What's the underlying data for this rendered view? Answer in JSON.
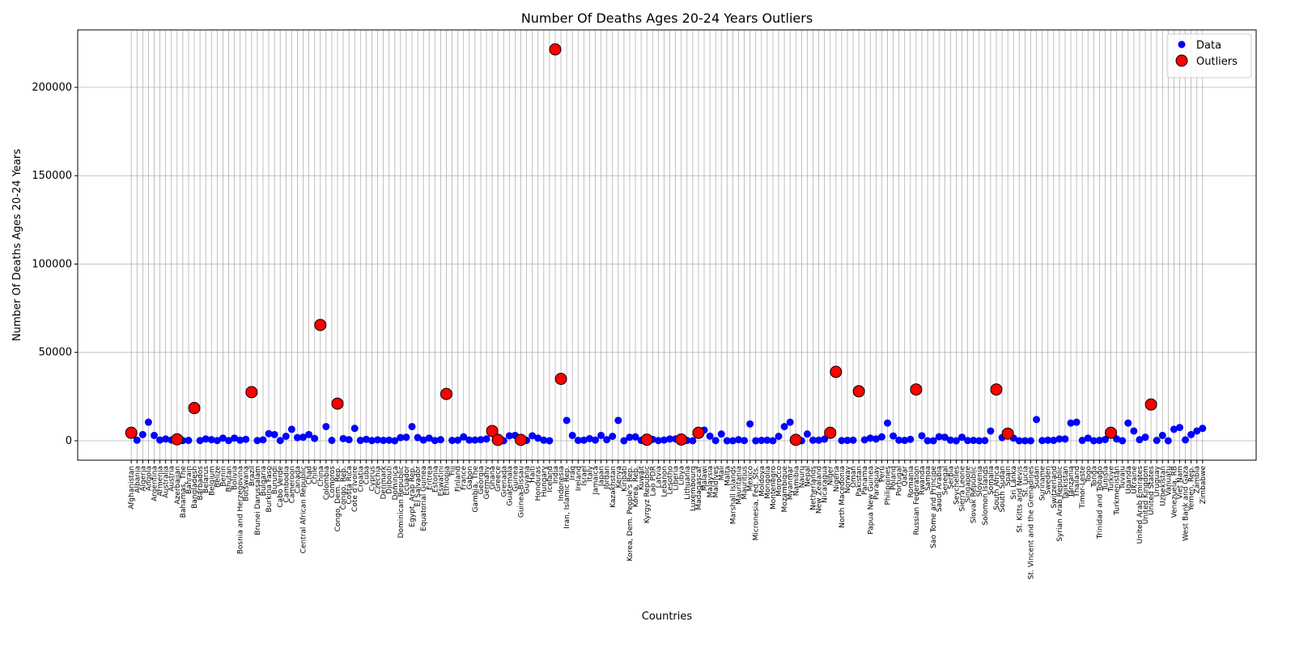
{
  "chart_data": {
    "type": "scatter",
    "title": "Number Of Deaths Ages 20-24 Years Outliers",
    "x_label": "Countries",
    "y_label": "Number Of Deaths Ages 20-24 Years",
    "categories": [
      "Afghanistan",
      "Albania",
      "Algeria",
      "Angola",
      "Argentina",
      "Armenia",
      "Australia",
      "Austria",
      "Azerbaijan",
      "Bahamas, The",
      "Bahrain",
      "Bangladesh",
      "Barbados",
      "Belarus",
      "Belgium",
      "Belize",
      "Benin",
      "Bhutan",
      "Bolivia",
      "Bosnia and Herzegovina",
      "Botswana",
      "Brazil",
      "Brunei Darussalam",
      "Bulgaria",
      "Burkina Faso",
      "Burundi",
      "Cabo Verde",
      "Cambodia",
      "Cameroon",
      "Canada",
      "Central African Republic",
      "Chad",
      "Chile",
      "China",
      "Colombia",
      "Comoros",
      "Congo, Dem. Rep.",
      "Congo, Rep.",
      "Costa Rica",
      "Cote d'Ivoire",
      "Croatia",
      "Cuba",
      "Cyprus",
      "Czechia",
      "Denmark",
      "Djibouti",
      "Dominica",
      "Dominican Republic",
      "Ecuador",
      "Egypt, Arab Rep.",
      "El Salvador",
      "Equatorial Guinea",
      "Eritrea",
      "Estonia",
      "Eswatini",
      "Ethiopia",
      "Fiji",
      "Finland",
      "France",
      "Gabon",
      "Gambia, The",
      "Georgia",
      "Germany",
      "Ghana",
      "Greece",
      "Grenada",
      "Guatemala",
      "Guinea",
      "Guinea-Bissau",
      "Guyana",
      "Haiti",
      "Honduras",
      "Hungary",
      "Iceland",
      "India",
      "Indonesia",
      "Iran, Islamic Rep.",
      "Iraq",
      "Ireland",
      "Israel",
      "Italy",
      "Jamaica",
      "Japan",
      "Jordan",
      "Kazakhstan",
      "Kenya",
      "Kiribati",
      "Korea, Dem. People's Rep.",
      "Korea, Rep.",
      "Kuwait",
      "Kyrgyz Republic",
      "Lao PDR",
      "Latvia",
      "Lebanon",
      "Lesotho",
      "Liberia",
      "Libya",
      "Lithuania",
      "Luxembourg",
      "Madagascar",
      "Malawi",
      "Malaysia",
      "Maldives",
      "Mali",
      "Malta",
      "Marshall Islands",
      "Mauritania",
      "Mauritius",
      "Mexico",
      "Micronesia, Fed. Sts.",
      "Moldova",
      "Mongolia",
      "Montenegro",
      "Morocco",
      "Mozambique",
      "Myanmar",
      "Namibia",
      "Nauru",
      "Nepal",
      "Netherlands",
      "New Zealand",
      "Nicaragua",
      "Niger",
      "Nigeria",
      "North Macedonia",
      "Norway",
      "Oman",
      "Pakistan",
      "Panama",
      "Papua New Guinea",
      "Paraguay",
      "Peru",
      "Philippines",
      "Poland",
      "Portugal",
      "Qatar",
      "Romania",
      "Russian Federation",
      "Rwanda",
      "Samoa",
      "Sao Tome and Principe",
      "Saudi Arabia",
      "Senegal",
      "Serbia",
      "Seychelles",
      "Sierra Leone",
      "Singapore",
      "Slovak Republic",
      "Slovenia",
      "Solomon Islands",
      "Somalia",
      "South Africa",
      "South Sudan",
      "Spain",
      "Sri Lanka",
      "St. Kitts and Nevis",
      "St. Lucia",
      "St. Vincent and the Grenadines",
      "Sudan",
      "Suriname",
      "Sweden",
      "Switzerland",
      "Syrian Arab Republic",
      "Tajikistan",
      "Tanzania",
      "Thailand",
      "Timor-Leste",
      "Togo",
      "Tonga",
      "Trinidad and Tobago",
      "Tunisia",
      "Turkiye",
      "Turkmenistan",
      "Tuvalu",
      "Uganda",
      "Ukraine",
      "United Arab Emirates",
      "United Kingdom",
      "United States",
      "Uruguay",
      "Uzbekistan",
      "Vanuatu",
      "Venezuela, RB",
      "Viet Nam",
      "West Bank and Gaza",
      "Yemen, Rep.",
      "Zambia",
      "Zimbabwe"
    ],
    "series": [
      {
        "name": "Data",
        "color": "blue",
        "values": [
          4500,
          300,
          3500,
          10500,
          3000,
          400,
          1000,
          400,
          800,
          100,
          200,
          18500,
          100,
          1000,
          600,
          100,
          1500,
          100,
          1500,
          300,
          800,
          27500,
          100,
          500,
          4000,
          3500,
          100,
          2500,
          6500,
          1800,
          2000,
          3500,
          1300,
          65500,
          8000,
          200,
          21000,
          1200,
          600,
          7000,
          200,
          800,
          100,
          500,
          200,
          300,
          0,
          1800,
          2000,
          8000,
          1800,
          400,
          1500,
          100,
          600,
          26500,
          200,
          300,
          2200,
          400,
          400,
          600,
          1000,
          5500,
          500,
          0,
          2800,
          3000,
          500,
          200,
          2800,
          1500,
          300,
          0,
          221500,
          35000,
          11500,
          3000,
          200,
          300,
          1200,
          400,
          3000,
          600,
          2500,
          11500,
          0,
          2000,
          2200,
          200,
          600,
          800,
          100,
          400,
          1000,
          1000,
          700,
          200,
          0,
          4500,
          6000,
          2600,
          100,
          3800,
          0,
          0,
          600,
          100,
          9500,
          0,
          200,
          300,
          0,
          2500,
          8000,
          10500,
          500,
          0,
          3800,
          300,
          300,
          900,
          4500,
          39000,
          100,
          200,
          300,
          28000,
          500,
          1500,
          1000,
          2200,
          10000,
          2700,
          300,
          200,
          800,
          29000,
          2800,
          0,
          0,
          2300,
          2000,
          300,
          0,
          2000,
          100,
          200,
          0,
          100,
          5500,
          29000,
          1800,
          4000,
          1500,
          0,
          0,
          0,
          12000,
          100,
          300,
          200,
          1000,
          1000,
          10000,
          10500,
          200,
          1500,
          0,
          200,
          700,
          4500,
          1000,
          0,
          10000,
          5500,
          600,
          2000,
          20500,
          200,
          3000,
          0,
          6500,
          7500,
          500,
          3500,
          5500,
          7000
        ]
      },
      {
        "name": "Outliers",
        "color": "red",
        "edgecolor": "black",
        "values": [
          4500,
          null,
          null,
          null,
          null,
          null,
          null,
          null,
          800,
          null,
          null,
          18500,
          null,
          null,
          null,
          null,
          null,
          null,
          null,
          null,
          null,
          27500,
          null,
          null,
          null,
          null,
          null,
          null,
          null,
          null,
          null,
          null,
          null,
          65500,
          null,
          null,
          21000,
          null,
          null,
          null,
          null,
          null,
          null,
          null,
          null,
          null,
          null,
          null,
          null,
          null,
          null,
          null,
          null,
          null,
          null,
          26500,
          null,
          null,
          null,
          null,
          null,
          null,
          null,
          5500,
          500,
          null,
          null,
          null,
          500,
          null,
          null,
          null,
          null,
          null,
          221500,
          35000,
          null,
          null,
          null,
          null,
          null,
          null,
          null,
          null,
          null,
          null,
          null,
          null,
          null,
          null,
          600,
          null,
          null,
          null,
          null,
          null,
          700,
          null,
          null,
          4500,
          null,
          null,
          null,
          null,
          null,
          null,
          null,
          null,
          null,
          null,
          null,
          null,
          null,
          null,
          null,
          null,
          500,
          null,
          null,
          null,
          null,
          null,
          4500,
          39000,
          null,
          null,
          null,
          28000,
          null,
          null,
          null,
          null,
          null,
          null,
          null,
          null,
          null,
          29000,
          null,
          null,
          null,
          null,
          null,
          null,
          null,
          null,
          null,
          null,
          null,
          null,
          null,
          29000,
          null,
          4000,
          null,
          null,
          null,
          null,
          null,
          null,
          null,
          null,
          null,
          null,
          null,
          null,
          null,
          null,
          null,
          null,
          null,
          4500,
          null,
          null,
          null,
          null,
          null,
          null,
          20500,
          null,
          null,
          null,
          null,
          null,
          null,
          null,
          null,
          null
        ]
      }
    ],
    "ylim": [
      -11000,
      232500
    ],
    "yticks": [
      0,
      50000,
      100000,
      150000,
      200000
    ],
    "grid": true,
    "legend": "upper right"
  }
}
